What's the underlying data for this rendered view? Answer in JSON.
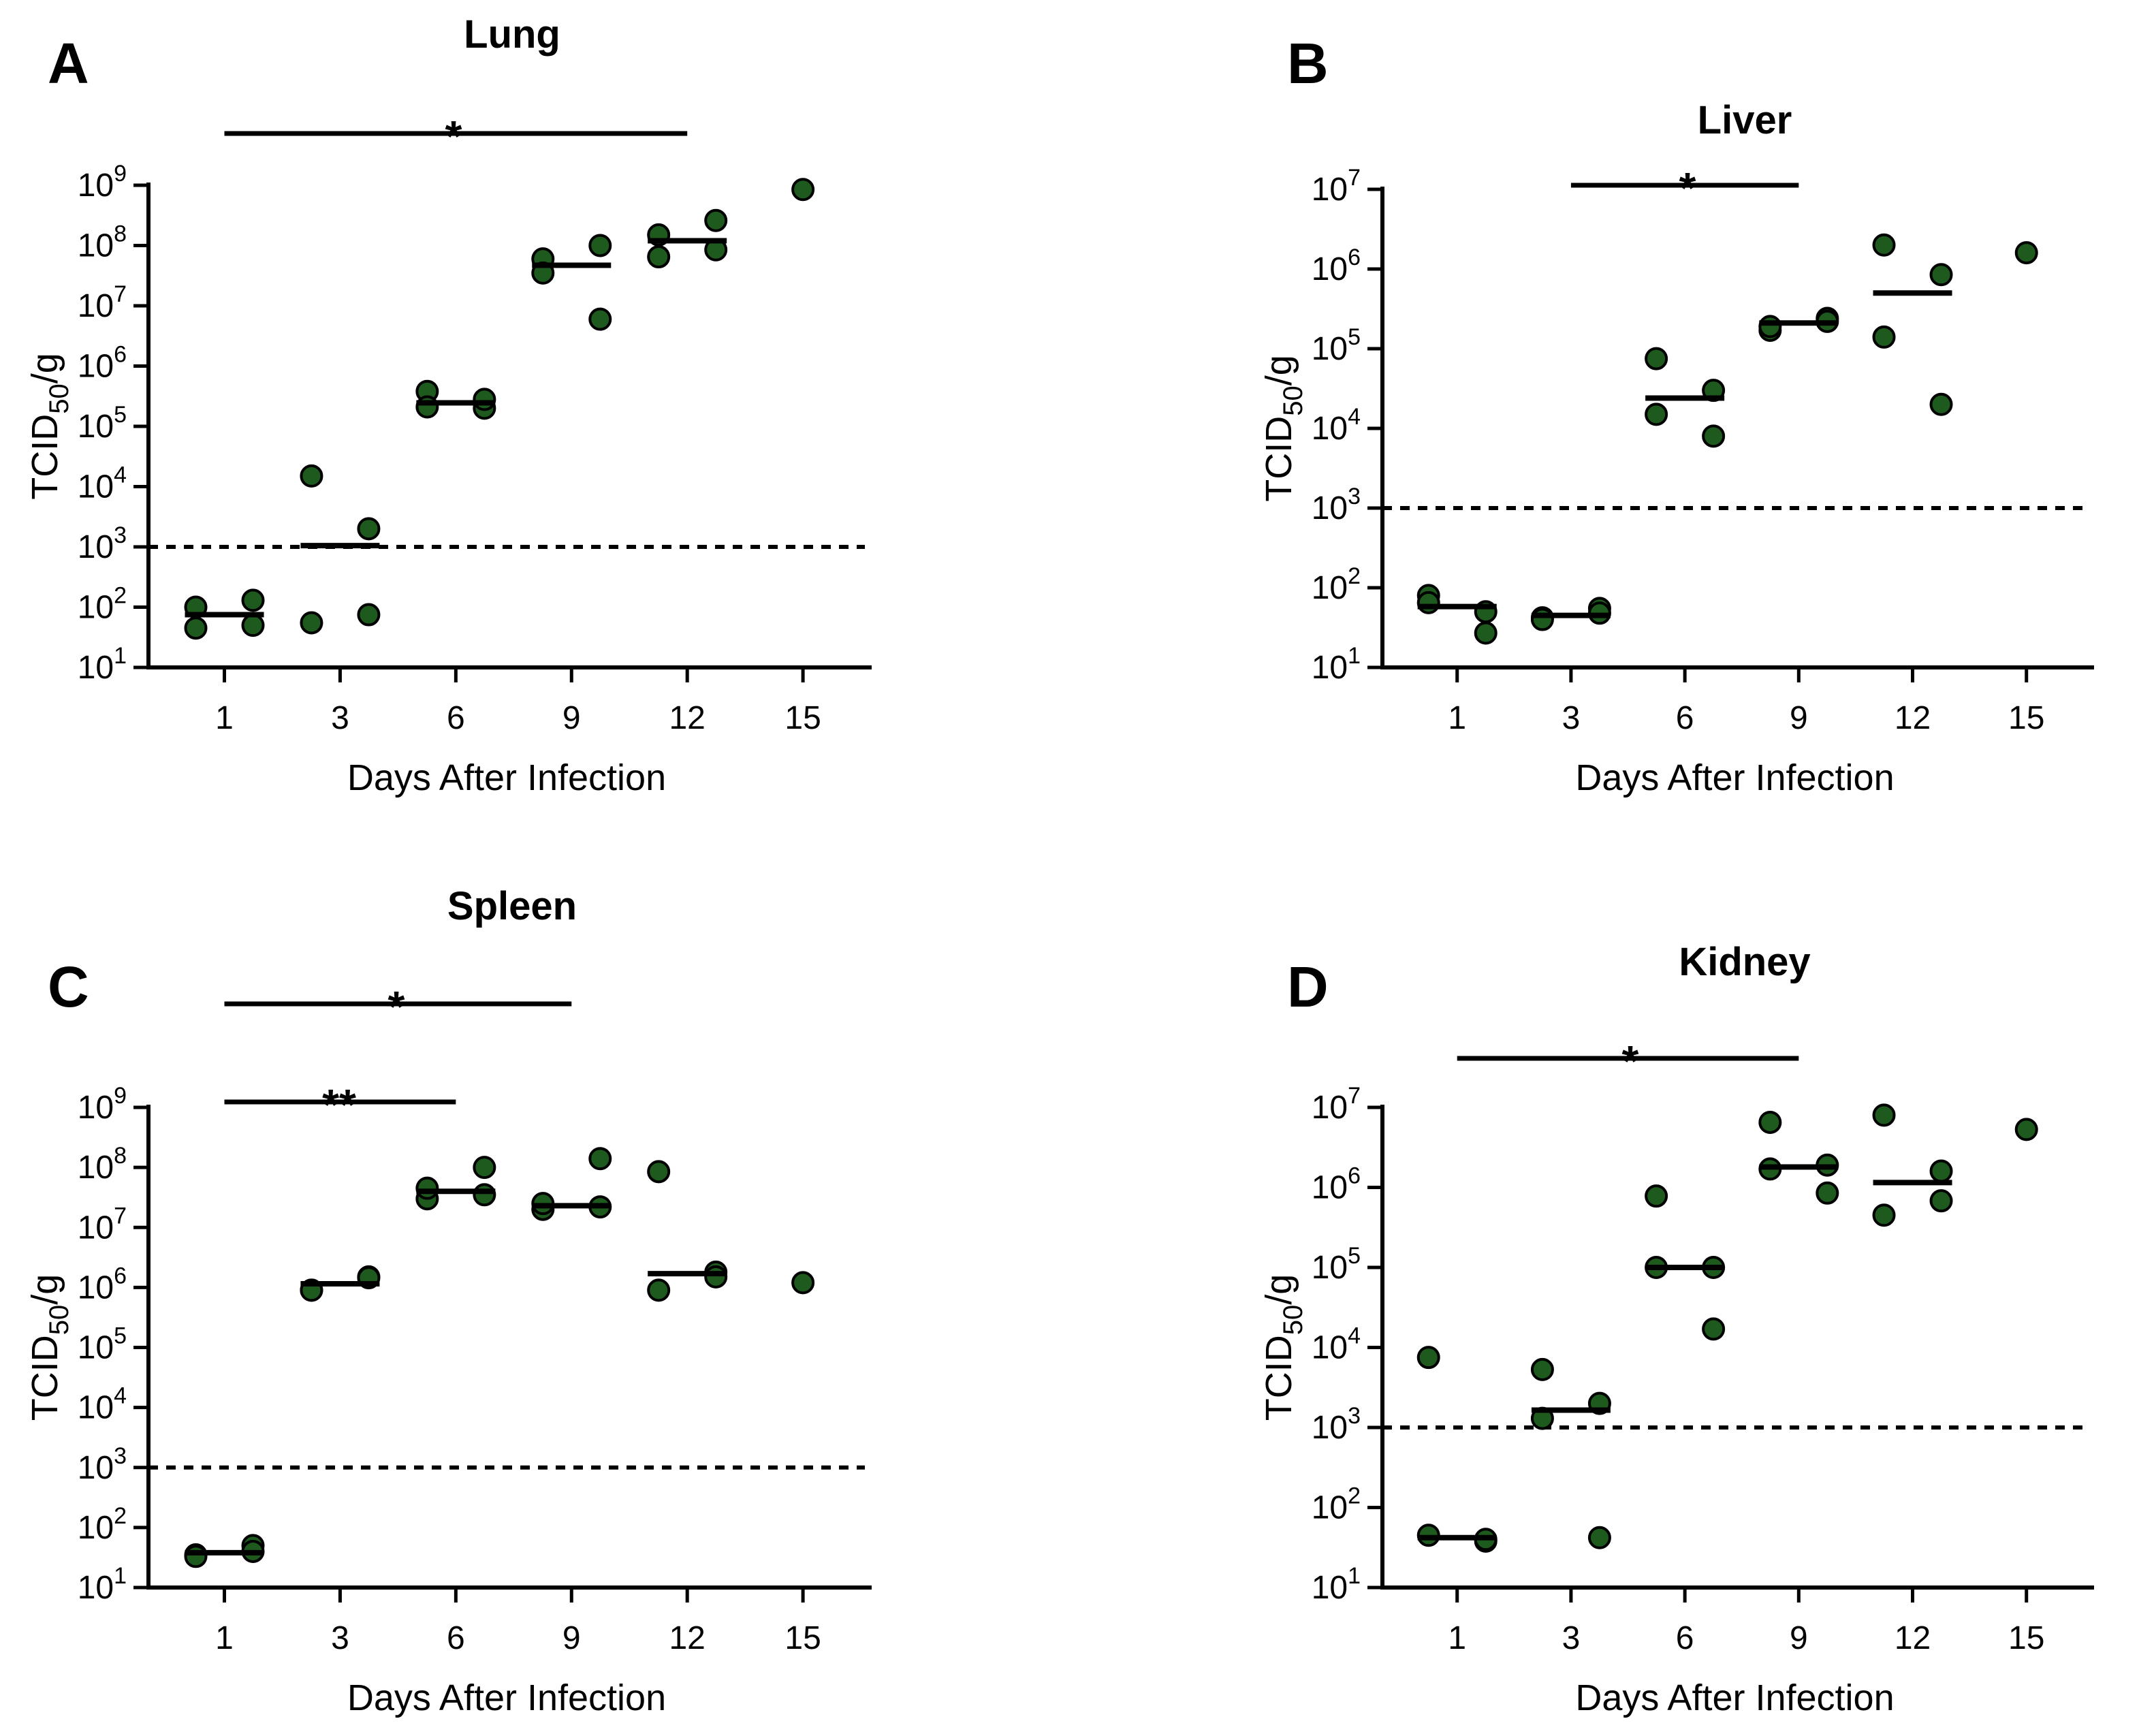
{
  "figure": {
    "marker_color": "#1e5a1e",
    "marker_outline": "#000000",
    "line_color": "#000000"
  },
  "chart_data": [
    {
      "panel": "A",
      "type": "scatter",
      "title": "Lung",
      "xlabel": "Days After Infection",
      "ylabel_main": "TCID",
      "ylabel_sub": "50",
      "ylabel_suffix": "/g",
      "yscale": "log10",
      "ylim_exp": [
        1,
        9
      ],
      "yticks": [
        1,
        2,
        3,
        4,
        5,
        6,
        7,
        8,
        9
      ],
      "ytick_base": "10",
      "categories": [
        "1",
        "3",
        "6",
        "9",
        "12",
        "15"
      ],
      "detection_limit": 1000,
      "groups": [
        {
          "day": "1",
          "points": [
            100,
            130,
            45,
            50
          ],
          "median": 75
        },
        {
          "day": "3",
          "points": [
            15000,
            2000,
            55,
            75
          ],
          "median": 1050
        },
        {
          "day": "6",
          "points": [
            380000,
            200000,
            210000,
            280000
          ],
          "median": 245000
        },
        {
          "day": "9",
          "points": [
            60000000,
            100000000,
            35000000,
            6000000
          ],
          "median": 47000000
        },
        {
          "day": "12",
          "points": [
            150000000,
            260000000,
            65000000,
            85000000
          ],
          "median": 120000000
        },
        {
          "day": "15",
          "points": [
            850000000
          ],
          "median": null
        }
      ],
      "significance": [
        {
          "from": "1",
          "to": "12",
          "label": "*"
        }
      ]
    },
    {
      "panel": "B",
      "type": "scatter",
      "title": "Liver",
      "xlabel": "Days After Infection",
      "ylabel_main": "TCID",
      "ylabel_sub": "50",
      "ylabel_suffix": "/g",
      "yscale": "log10",
      "ylim_exp": [
        1,
        7
      ],
      "yticks": [
        1,
        2,
        3,
        4,
        5,
        6,
        7
      ],
      "ytick_base": "10",
      "categories": [
        "1",
        "3",
        "6",
        "9",
        "12",
        "15"
      ],
      "detection_limit": 1000,
      "groups": [
        {
          "day": "1",
          "points": [
            80,
            50,
            65,
            27
          ],
          "median": 58
        },
        {
          "day": "3",
          "points": [
            42,
            55,
            40,
            48
          ],
          "median": 45
        },
        {
          "day": "6",
          "points": [
            75000,
            30000,
            15000,
            8000
          ],
          "median": 24000
        },
        {
          "day": "9",
          "points": [
            170000,
            240000,
            190000,
            220000
          ],
          "median": 210000
        },
        {
          "day": "12",
          "points": [
            2000000,
            850000,
            140000,
            20000
          ],
          "median": 500000
        },
        {
          "day": "15",
          "points": [
            1600000
          ],
          "median": null
        }
      ],
      "significance": [
        {
          "from": "3",
          "to": "9",
          "label": "*"
        }
      ]
    },
    {
      "panel": "C",
      "type": "scatter",
      "title": "Spleen",
      "xlabel": "Days After Infection",
      "ylabel_main": "TCID",
      "ylabel_sub": "50",
      "ylabel_suffix": "/g",
      "yscale": "log10",
      "ylim_exp": [
        1,
        9
      ],
      "yticks": [
        1,
        2,
        3,
        4,
        5,
        6,
        7,
        8,
        9
      ],
      "ytick_base": "10",
      "categories": [
        "1",
        "3",
        "6",
        "9",
        "12",
        "15"
      ],
      "detection_limit": 1000,
      "groups": [
        {
          "day": "1",
          "points": [
            35,
            50,
            33,
            40
          ],
          "median": 38
        },
        {
          "day": "3",
          "points": [
            900000,
            1500000,
            900000,
            1450000
          ],
          "median": 1150000
        },
        {
          "day": "6",
          "points": [
            30000000,
            100000000,
            45000000,
            35000000
          ],
          "median": 40000000
        },
        {
          "day": "9",
          "points": [
            20000000,
            140000000,
            25000000,
            22000000
          ],
          "median": 23000000
        },
        {
          "day": "12",
          "points": [
            85000000,
            1800000,
            900000,
            1500000
          ],
          "median": 1700000
        },
        {
          "day": "15",
          "points": [
            1200000
          ],
          "median": null
        }
      ],
      "significance": [
        {
          "from": "1",
          "to": "9",
          "label": "*"
        },
        {
          "from": "1",
          "to": "6",
          "label": "**"
        }
      ]
    },
    {
      "panel": "D",
      "type": "scatter",
      "title": "Kidney",
      "xlabel": "Days After Infection",
      "ylabel_main": "TCID",
      "ylabel_sub": "50",
      "ylabel_suffix": "/g",
      "yscale": "log10",
      "ylim_exp": [
        1,
        7
      ],
      "yticks": [
        1,
        2,
        3,
        4,
        5,
        6,
        7
      ],
      "ytick_base": "10",
      "categories": [
        "1",
        "3",
        "6",
        "9",
        "12",
        "15"
      ],
      "detection_limit": 1000,
      "groups": [
        {
          "day": "1",
          "points": [
            7500,
            38,
            45,
            40
          ],
          "median": 42
        },
        {
          "day": "3",
          "points": [
            5300,
            2000,
            1300,
            42
          ],
          "median": 1650
        },
        {
          "day": "6",
          "points": [
            780000,
            100000,
            100000,
            17000
          ],
          "median": 100000
        },
        {
          "day": "9",
          "points": [
            6500000,
            1900000,
            1700000,
            850000
          ],
          "median": 1800000
        },
        {
          "day": "12",
          "points": [
            8000000,
            1600000,
            450000,
            680000
          ],
          "median": 1150000
        },
        {
          "day": "15",
          "points": [
            5300000
          ],
          "median": null
        }
      ],
      "significance": [
        {
          "from": "1",
          "to": "9",
          "label": "*"
        }
      ]
    }
  ]
}
